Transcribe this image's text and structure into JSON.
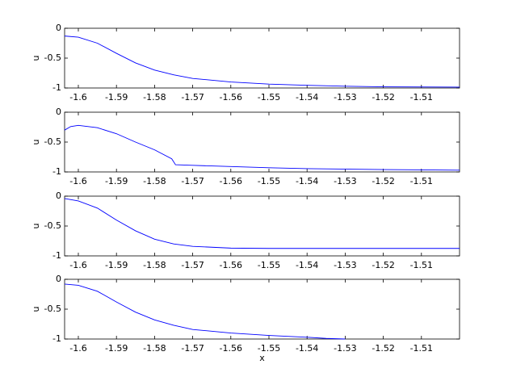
{
  "chart_data": [
    {
      "type": "line",
      "ylabel": "u",
      "xlim": [
        -1.6036,
        -1.5
      ],
      "ylim": [
        -1,
        0
      ],
      "xticks": [
        -1.6,
        -1.59,
        -1.58,
        -1.57,
        -1.56,
        -1.55,
        -1.54,
        -1.53,
        -1.52,
        -1.51
      ],
      "yticks": [
        -1,
        -0.5,
        0
      ],
      "x": [
        -1.6036,
        -1.6,
        -1.595,
        -1.59,
        -1.585,
        -1.58,
        -1.575,
        -1.57,
        -1.56,
        -1.55,
        -1.54,
        -1.53,
        -1.52,
        -1.5
      ],
      "series": [
        {
          "color": "#0000ff",
          "values": [
            -0.13,
            -0.15,
            -0.25,
            -0.42,
            -0.58,
            -0.7,
            -0.78,
            -0.84,
            -0.9,
            -0.935,
            -0.955,
            -0.97,
            -0.98,
            -0.985
          ]
        }
      ]
    },
    {
      "type": "line",
      "ylabel": "u",
      "xlim": [
        -1.6036,
        -1.5
      ],
      "ylim": [
        -1,
        0
      ],
      "xticks": [
        -1.6,
        -1.59,
        -1.58,
        -1.57,
        -1.56,
        -1.55,
        -1.54,
        -1.53,
        -1.52,
        -1.51
      ],
      "yticks": [
        -1,
        -0.5,
        0
      ],
      "x": [
        -1.6036,
        -1.602,
        -1.6,
        -1.595,
        -1.59,
        -1.585,
        -1.58,
        -1.5755,
        -1.5745,
        -1.57,
        -1.56,
        -1.55,
        -1.54,
        -1.52,
        -1.5
      ],
      "series": [
        {
          "color": "#0000ff",
          "values": [
            -0.3,
            -0.24,
            -0.22,
            -0.26,
            -0.36,
            -0.5,
            -0.63,
            -0.78,
            -0.88,
            -0.89,
            -0.91,
            -0.93,
            -0.945,
            -0.96,
            -0.97
          ]
        }
      ]
    },
    {
      "type": "line",
      "ylabel": "u",
      "xlim": [
        -1.6036,
        -1.5
      ],
      "ylim": [
        -1,
        0
      ],
      "xticks": [
        -1.6,
        -1.59,
        -1.58,
        -1.57,
        -1.56,
        -1.55,
        -1.54,
        -1.53,
        -1.52,
        -1.51
      ],
      "yticks": [
        -1,
        -0.5,
        0
      ],
      "x": [
        -1.6036,
        -1.6,
        -1.595,
        -1.59,
        -1.585,
        -1.58,
        -1.575,
        -1.57,
        -1.56,
        -1.55,
        -1.5
      ],
      "series": [
        {
          "color": "#0000ff",
          "values": [
            -0.04,
            -0.08,
            -0.2,
            -0.4,
            -0.58,
            -0.72,
            -0.8,
            -0.84,
            -0.87,
            -0.875,
            -0.875
          ]
        }
      ]
    },
    {
      "type": "line",
      "ylabel": "u",
      "xlabel": "x",
      "xlim": [
        -1.6036,
        -1.5
      ],
      "ylim": [
        -1,
        0
      ],
      "xticks": [
        -1.6,
        -1.59,
        -1.58,
        -1.57,
        -1.56,
        -1.55,
        -1.54,
        -1.53,
        -1.52,
        -1.51
      ],
      "yticks": [
        -1,
        -0.5,
        0
      ],
      "x": [
        -1.6036,
        -1.6,
        -1.595,
        -1.59,
        -1.585,
        -1.58,
        -1.575,
        -1.57,
        -1.56,
        -1.55,
        -1.54,
        -1.535,
        -1.53
      ],
      "series": [
        {
          "color": "#0000ff",
          "values": [
            -0.08,
            -0.1,
            -0.2,
            -0.38,
            -0.55,
            -0.68,
            -0.77,
            -0.84,
            -0.9,
            -0.94,
            -0.97,
            -0.99,
            -1
          ]
        }
      ]
    }
  ]
}
